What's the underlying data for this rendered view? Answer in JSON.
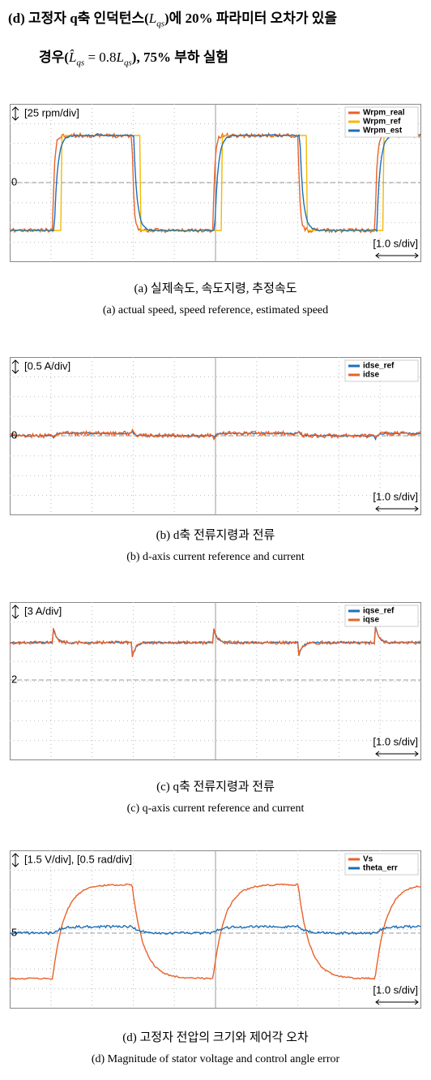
{
  "heading": {
    "line1_start": "(d) 고정자 q축 인덕턴스(",
    "line1_symbol": "L",
    "line1_sub": "qs",
    "line1_end": ")에 20% 파라미터 오차가 있을",
    "line2_start": "경우(",
    "line2_symbol_hat": "L̂",
    "line2_sub1": "qs",
    "line2_eq": " = 0.8",
    "line2_symbol": "L",
    "line2_sub2": "qs",
    "line2_end": "), 75% 부하 실험"
  },
  "panels": [
    {
      "scale": "[25 rpm/div]",
      "axis_label": "0",
      "legend": [
        "Wrpm_real",
        "Wrpm_ref",
        "Wrpm_est"
      ],
      "time_scale": "[1.0 s/div]",
      "caption_ko": "(a) 실제속도, 속도지령, 추정속도",
      "caption_en": "(a) actual speed, speed reference, estimated speed"
    },
    {
      "scale": "[0.5 A/div]",
      "axis_label": "0",
      "legend": [
        "idse_ref",
        "idse"
      ],
      "time_scale": "[1.0 s/div]",
      "caption_ko": "(b) d축 전류지령과 전류",
      "caption_en": "(b) d-axis current reference and current"
    },
    {
      "scale": "[3 A/div]",
      "axis_label": "2",
      "legend": [
        "iqse_ref",
        "iqse"
      ],
      "time_scale": "[1.0 s/div]",
      "caption_ko": "(c) q축 전류지령과 전류",
      "caption_en": "(c) q-axis current reference and current"
    },
    {
      "scale": "[1.5 V/div], [0.5 rad/div]",
      "axis_label": "5",
      "legend": [
        "Vs",
        "theta_err"
      ],
      "time_scale": "[1.0 s/div]",
      "caption_ko": "(d) 고정자 전압의 크기와 제어각 오차",
      "caption_en": "(d) Magnitude of stator voltage and control angle error"
    }
  ]
}
